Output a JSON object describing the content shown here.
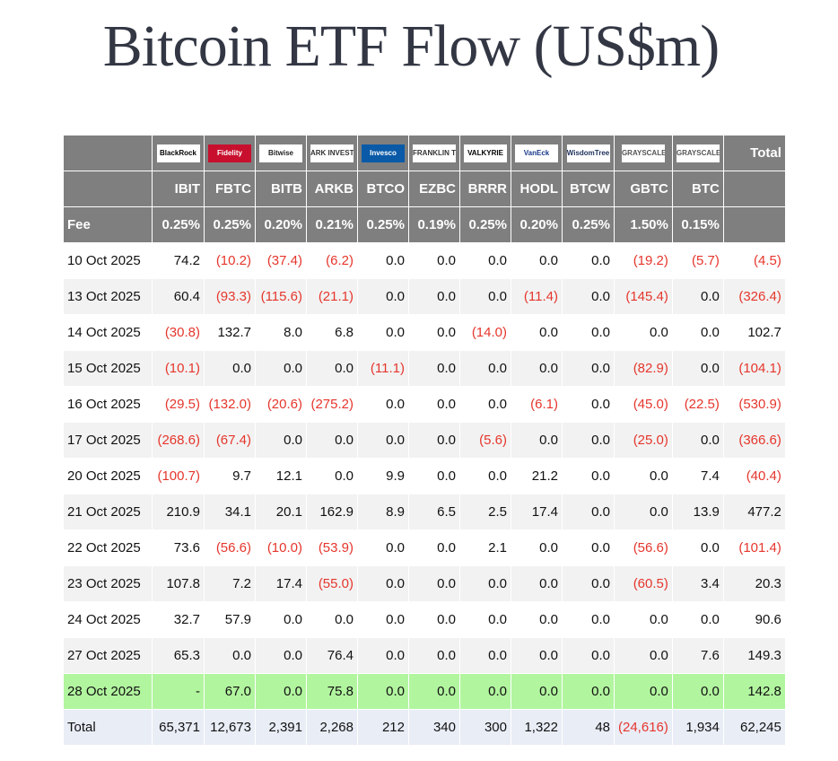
{
  "title": "Bitcoin ETF Flow (US$m)",
  "logos": [
    {
      "text": "BlackRock",
      "color": "#000000",
      "bg": "#ffffff"
    },
    {
      "text": "Fidelity",
      "color": "#ffffff",
      "bg": "#c8102e"
    },
    {
      "text": "Bitwise",
      "color": "#222222",
      "bg": "#ffffff"
    },
    {
      "text": "ARK INVEST",
      "color": "#333333",
      "bg": "#ffffff"
    },
    {
      "text": "Invesco",
      "color": "#ffffff",
      "bg": "#0a5aa8"
    },
    {
      "text": "FRANKLIN TEMPLETON",
      "color": "#333333",
      "bg": "#ffffff"
    },
    {
      "text": "VALKYRIE",
      "color": "#000000",
      "bg": "#ffffff"
    },
    {
      "text": "VanEck",
      "color": "#1a3a8a",
      "bg": "#ffffff"
    },
    {
      "text": "WisdomTree",
      "color": "#1c2f5a",
      "bg": "#ffffff"
    },
    {
      "text": "GRAYSCALE",
      "color": "#555555",
      "bg": "#ffffff"
    },
    {
      "text": "GRAYSCALE",
      "color": "#555555",
      "bg": "#ffffff"
    }
  ],
  "total_label": "Total",
  "tickers": [
    "IBIT",
    "FBTC",
    "BITB",
    "ARKB",
    "BTCO",
    "EZBC",
    "BRRR",
    "HODL",
    "BTCW",
    "GBTC",
    "BTC"
  ],
  "fee_label": "Fee",
  "fees": [
    "0.25%",
    "0.25%",
    "0.20%",
    "0.21%",
    "0.25%",
    "0.19%",
    "0.25%",
    "0.20%",
    "0.25%",
    "1.50%",
    "0.15%"
  ],
  "rows": [
    {
      "date": "10 Oct 2025",
      "values": [
        "74.2",
        "(10.2)",
        "(37.4)",
        "(6.2)",
        "0.0",
        "0.0",
        "0.0",
        "0.0",
        "0.0",
        "(19.2)",
        "(5.7)",
        "(4.5)"
      ]
    },
    {
      "date": "13 Oct 2025",
      "values": [
        "60.4",
        "(93.3)",
        "(115.6)",
        "(21.1)",
        "0.0",
        "0.0",
        "0.0",
        "(11.4)",
        "0.0",
        "(145.4)",
        "0.0",
        "(326.4)"
      ]
    },
    {
      "date": "14 Oct 2025",
      "values": [
        "(30.8)",
        "132.7",
        "8.0",
        "6.8",
        "0.0",
        "0.0",
        "(14.0)",
        "0.0",
        "0.0",
        "0.0",
        "0.0",
        "102.7"
      ]
    },
    {
      "date": "15 Oct 2025",
      "values": [
        "(10.1)",
        "0.0",
        "0.0",
        "0.0",
        "(11.1)",
        "0.0",
        "0.0",
        "0.0",
        "0.0",
        "(82.9)",
        "0.0",
        "(104.1)"
      ]
    },
    {
      "date": "16 Oct 2025",
      "values": [
        "(29.5)",
        "(132.0)",
        "(20.6)",
        "(275.2)",
        "0.0",
        "0.0",
        "0.0",
        "(6.1)",
        "0.0",
        "(45.0)",
        "(22.5)",
        "(530.9)"
      ]
    },
    {
      "date": "17 Oct 2025",
      "values": [
        "(268.6)",
        "(67.4)",
        "0.0",
        "0.0",
        "0.0",
        "0.0",
        "(5.6)",
        "0.0",
        "0.0",
        "(25.0)",
        "0.0",
        "(366.6)"
      ]
    },
    {
      "date": "20 Oct 2025",
      "values": [
        "(100.7)",
        "9.7",
        "12.1",
        "0.0",
        "9.9",
        "0.0",
        "0.0",
        "21.2",
        "0.0",
        "0.0",
        "7.4",
        "(40.4)"
      ]
    },
    {
      "date": "21 Oct 2025",
      "values": [
        "210.9",
        "34.1",
        "20.1",
        "162.9",
        "8.9",
        "6.5",
        "2.5",
        "17.4",
        "0.0",
        "0.0",
        "13.9",
        "477.2"
      ]
    },
    {
      "date": "22 Oct 2025",
      "values": [
        "73.6",
        "(56.6)",
        "(10.0)",
        "(53.9)",
        "0.0",
        "0.0",
        "2.1",
        "0.0",
        "0.0",
        "(56.6)",
        "0.0",
        "(101.4)"
      ]
    },
    {
      "date": "23 Oct 2025",
      "values": [
        "107.8",
        "7.2",
        "17.4",
        "(55.0)",
        "0.0",
        "0.0",
        "0.0",
        "0.0",
        "0.0",
        "(60.5)",
        "3.4",
        "20.3"
      ]
    },
    {
      "date": "24 Oct 2025",
      "values": [
        "32.7",
        "57.9",
        "0.0",
        "0.0",
        "0.0",
        "0.0",
        "0.0",
        "0.0",
        "0.0",
        "0.0",
        "0.0",
        "90.6"
      ]
    },
    {
      "date": "27 Oct 2025",
      "values": [
        "65.3",
        "0.0",
        "0.0",
        "76.4",
        "0.0",
        "0.0",
        "0.0",
        "0.0",
        "0.0",
        "0.0",
        "7.6",
        "149.3"
      ]
    },
    {
      "date": "28 Oct 2025",
      "values": [
        "-",
        "67.0",
        "0.0",
        "75.8",
        "0.0",
        "0.0",
        "0.0",
        "0.0",
        "0.0",
        "0.0",
        "0.0",
        "142.8"
      ],
      "highlight": true
    }
  ],
  "totals": {
    "label": "Total",
    "values": [
      "65,371",
      "12,673",
      "2,391",
      "2,268",
      "212",
      "340",
      "300",
      "1,322",
      "48",
      "(24,616)",
      "1,934",
      "62,245"
    ]
  },
  "colors": {
    "header_bg": "#7f7f7f",
    "negative": "#e5362c",
    "highlight_row": "#b2f59f",
    "total_row": "#e9edf6",
    "alt_row": "#f2f2f2"
  }
}
